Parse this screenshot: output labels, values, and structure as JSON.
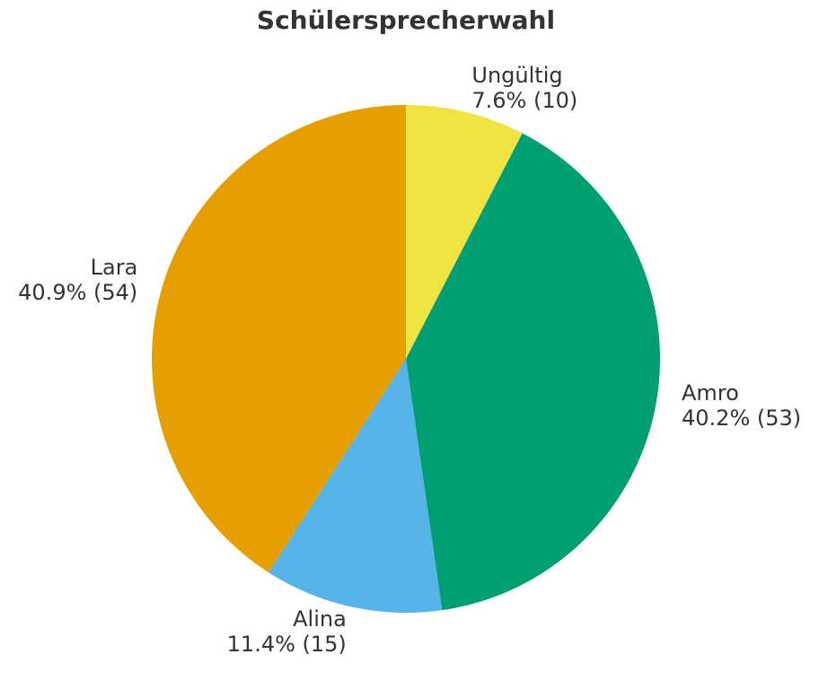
{
  "page": {
    "background": "#ffffff",
    "text_color": "#333333"
  },
  "chart_data": {
    "type": "pie",
    "title": "Schülersprecherwahl",
    "total_votes": 132,
    "start_angle_deg": 90,
    "direction": "clockwise",
    "label_distance": 1.1,
    "legend": "none",
    "slices": [
      {
        "label": "Ungültig",
        "value": 10,
        "pct": "7.6%",
        "color": "#F0E442"
      },
      {
        "label": "Amro",
        "value": 53,
        "pct": "40.2%",
        "color": "#009E73"
      },
      {
        "label": "Alina",
        "value": 15,
        "pct": "11.4%",
        "color": "#56B4E9"
      },
      {
        "label": "Lara",
        "value": 54,
        "pct": "40.9%",
        "color": "#E69F00"
      }
    ]
  }
}
